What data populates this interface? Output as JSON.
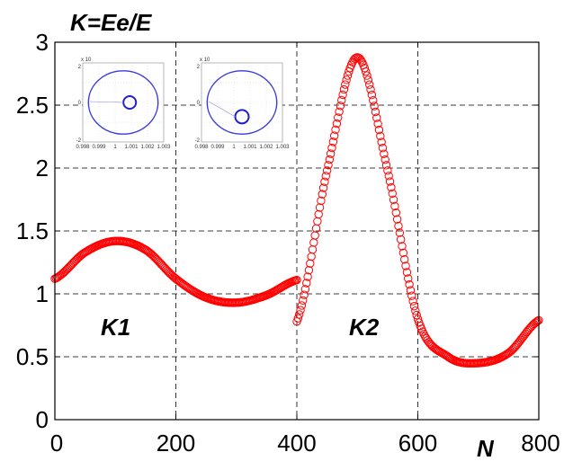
{
  "chart_data": {
    "type": "scatter",
    "title": "",
    "ylabel": "K=Ee/E",
    "xlabel": "N",
    "xlim": [
      0,
      800
    ],
    "ylim": [
      0,
      3
    ],
    "xticks": [
      0,
      200,
      400,
      600,
      800
    ],
    "xtick_labels": [
      "0",
      "200",
      "400",
      "600",
      "800"
    ],
    "yticks": [
      0,
      0.5,
      1,
      1.5,
      2,
      2.5,
      3
    ],
    "ytick_labels": [
      "0",
      "0.5",
      "1",
      "1.5",
      "2",
      "2.5",
      "3"
    ],
    "grid": true,
    "marker_color": "#ff0000",
    "segments": [
      {
        "x": [
          0,
          50,
          100,
          150,
          200,
          250,
          300,
          350,
          400
        ],
        "y": [
          1.12,
          1.33,
          1.42,
          1.35,
          1.12,
          0.97,
          0.93,
          0.99,
          1.11
        ]
      },
      {
        "x": [
          400,
          450,
          500,
          550,
          600,
          650,
          700,
          750,
          800
        ],
        "y": [
          0.78,
          1.98,
          2.88,
          1.98,
          0.8,
          0.5,
          0.45,
          0.53,
          0.79
        ]
      }
    ],
    "annotations": [
      {
        "text": "K1",
        "x": 95,
        "y": 0.75
      },
      {
        "text": "K2",
        "x": 490,
        "y": 0.75
      }
    ],
    "insets": [
      {
        "ytop_label": "2",
        "yexp": "x 10",
        "ymid": "0",
        "ybot": "-2",
        "xtick_labels": [
          "0.998",
          "0.999",
          "1",
          "1.001",
          "1.002",
          "1.003"
        ]
      },
      {
        "ytop_label": "2",
        "yexp": "x 10",
        "ymid": "0",
        "ybot": "-2",
        "xtick_labels": [
          "0.998",
          "0.999",
          "1",
          "1.001",
          "1.002",
          "1.003"
        ]
      }
    ]
  }
}
